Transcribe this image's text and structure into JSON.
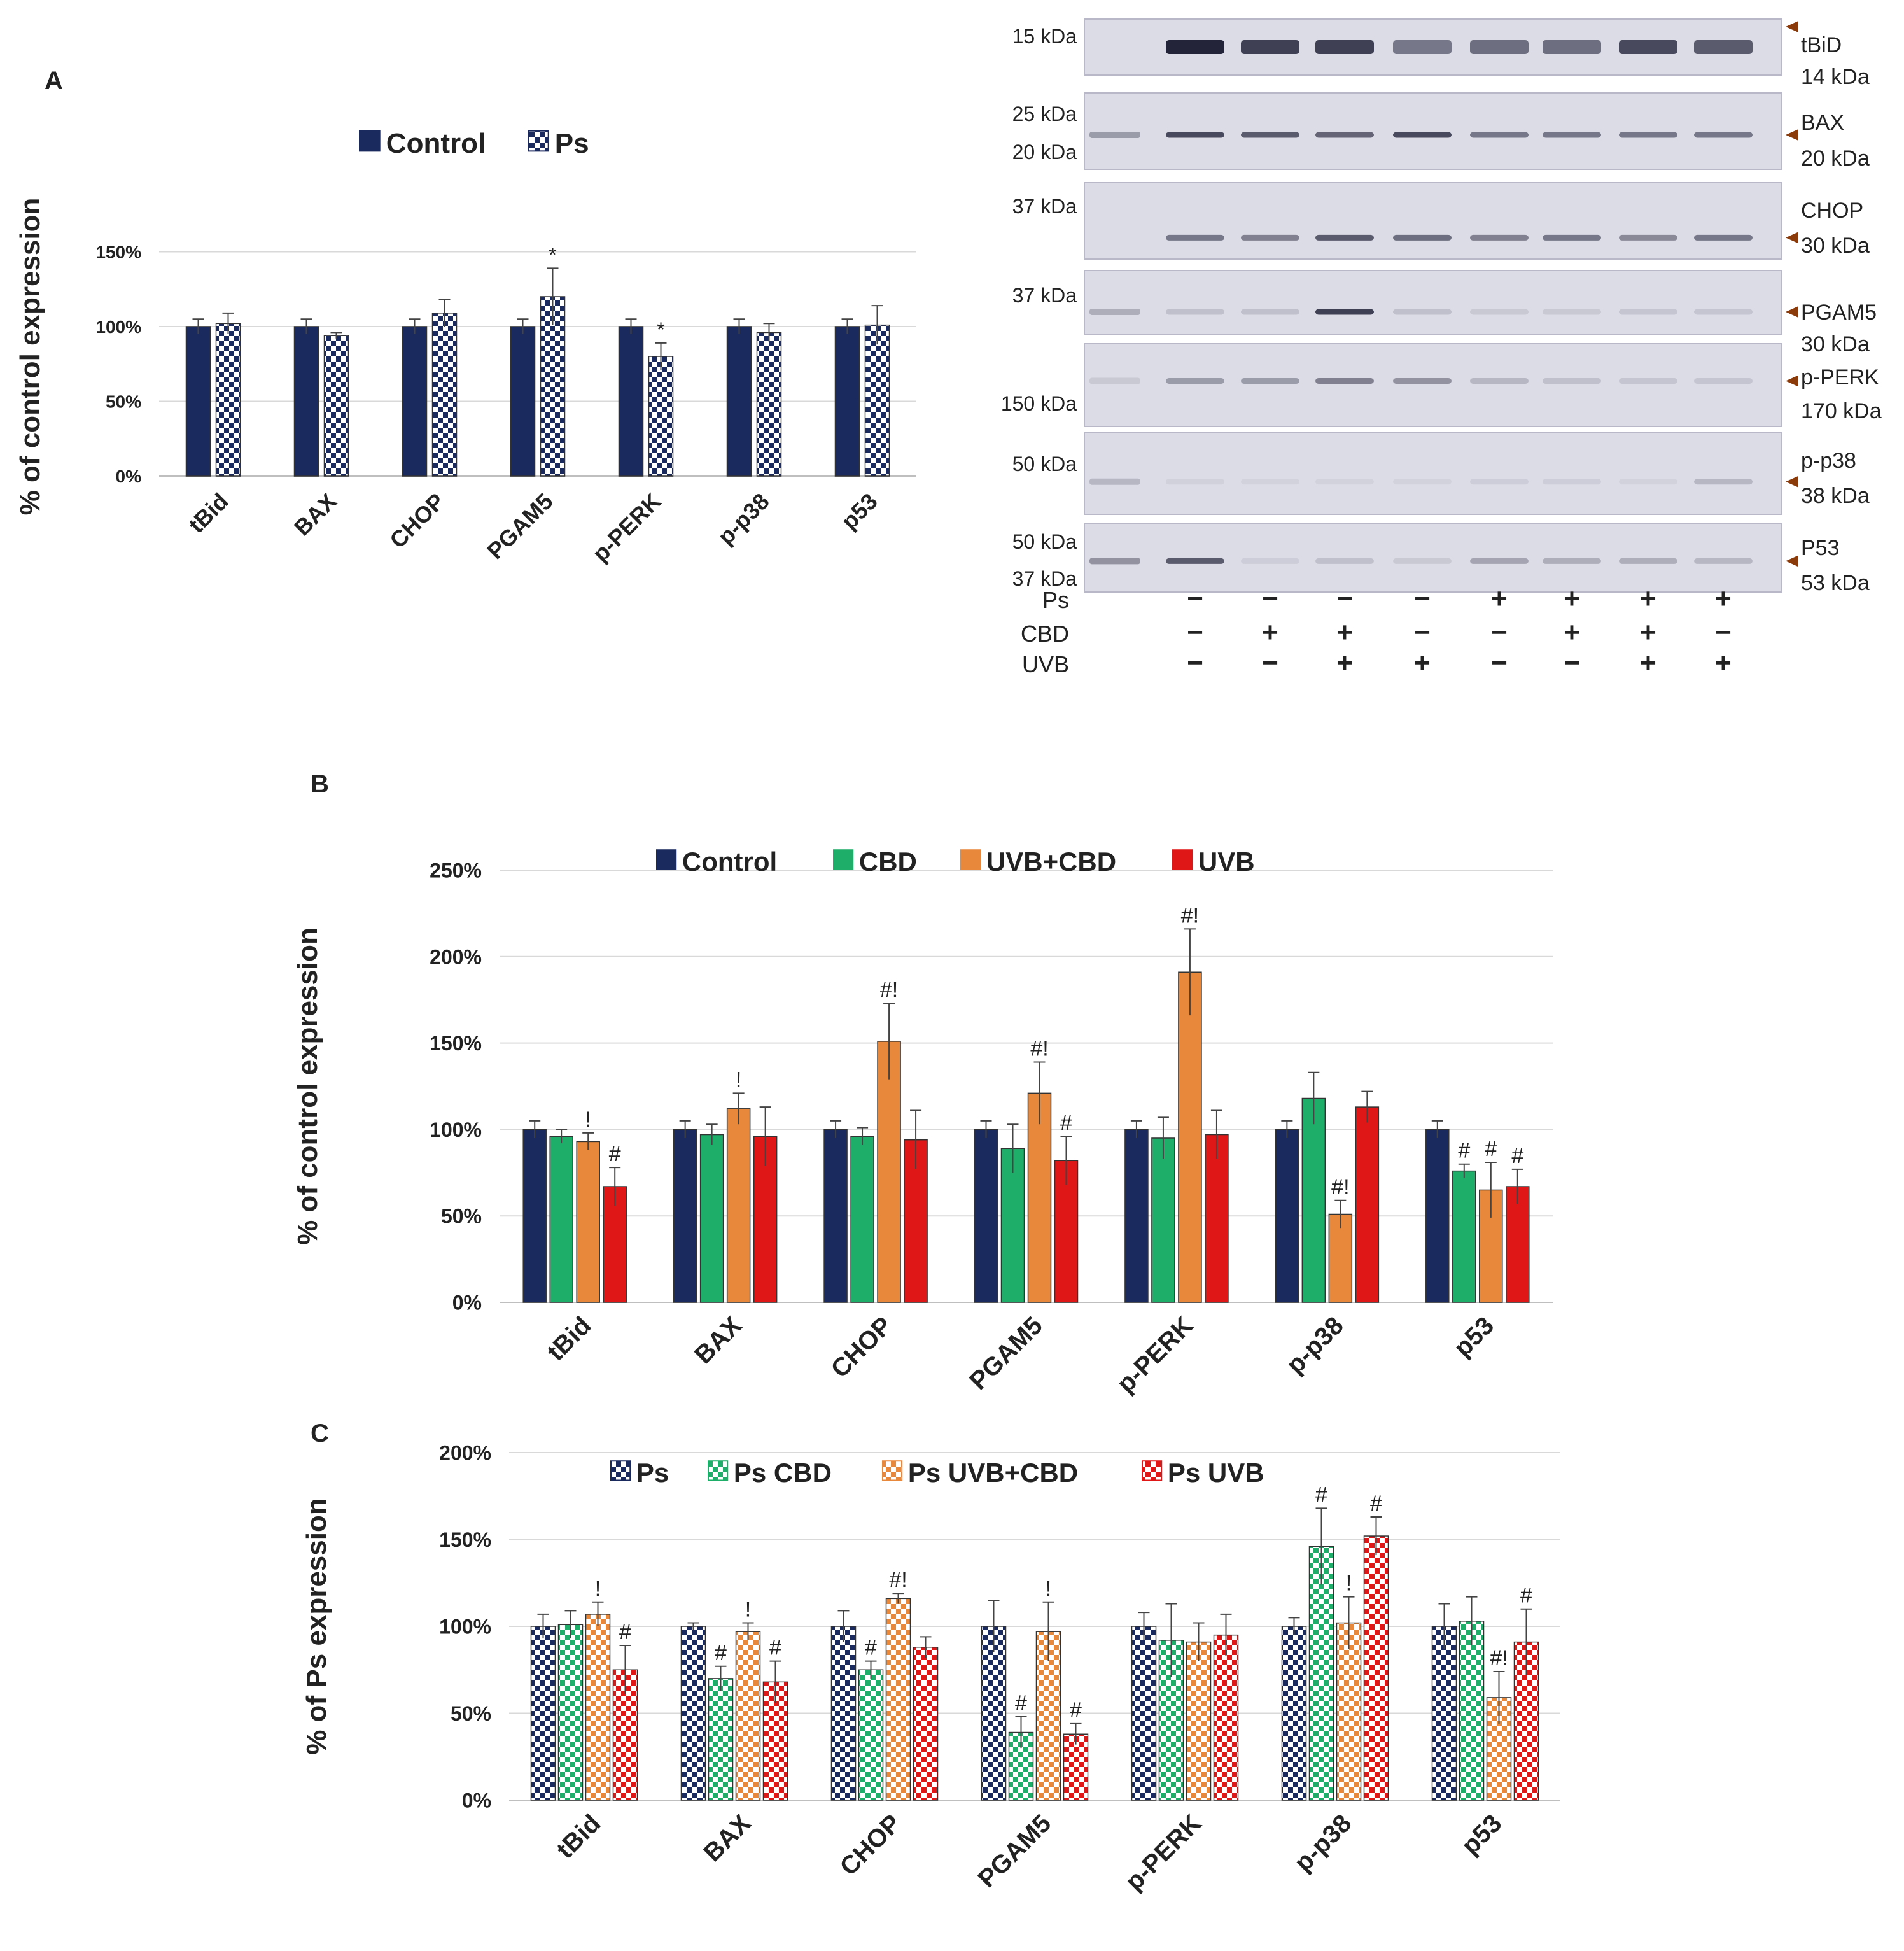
{
  "figure": {
    "panel_labels": [
      "A",
      "B",
      "C"
    ]
  },
  "colors": {
    "control": "#1b2a5e",
    "cbd": "#1fae6a",
    "uvbcbd": "#e8883a",
    "uvb": "#e01717",
    "grid": "#d9d9d9",
    "axis": "#bfbfbf",
    "text": "#222222",
    "band": "#23243a",
    "marker": "#8b3a0a"
  },
  "chart_data": [
    {
      "id": "A",
      "type": "bar",
      "categories": [
        "tBid",
        "BAX",
        "CHOP",
        "PGAM5",
        "p-PERK",
        "p-p38",
        "p53"
      ],
      "ylabel": "% of control expression",
      "yticks": [
        "0%",
        "50%",
        "100%",
        "150%"
      ],
      "ylim": [
        0,
        160
      ],
      "legend_position": "top",
      "series": [
        {
          "name": "Control",
          "fill": "solid",
          "color_key": "control",
          "values": [
            100,
            100,
            100,
            100,
            100,
            100,
            100
          ],
          "errors": [
            5,
            5,
            5,
            5,
            5,
            5,
            5
          ],
          "marks": [
            "",
            "",
            "",
            "",
            "",
            "",
            ""
          ]
        },
        {
          "name": "Ps",
          "fill": "checker",
          "color_key": "control",
          "values": [
            102,
            94,
            109,
            120,
            80,
            96,
            101
          ],
          "errors": [
            7,
            2,
            9,
            19,
            9,
            6,
            13
          ],
          "marks": [
            "",
            "",
            "",
            "*",
            "*",
            "",
            ""
          ]
        }
      ]
    },
    {
      "id": "B",
      "type": "bar",
      "categories": [
        "tBid",
        "BAX",
        "CHOP",
        "PGAM5",
        "p-PERK",
        "p-p38",
        "p53"
      ],
      "ylabel": "% of control expression",
      "yticks": [
        "0%",
        "50%",
        "100%",
        "150%",
        "200%",
        "250%"
      ],
      "ylim": [
        0,
        250
      ],
      "legend_position": "top",
      "series": [
        {
          "name": "Control",
          "fill": "solid",
          "color_key": "control",
          "values": [
            100,
            100,
            100,
            100,
            100,
            100,
            100
          ],
          "errors": [
            5,
            5,
            5,
            5,
            5,
            5,
            5
          ],
          "marks": [
            "",
            "",
            "",
            "",
            "",
            "",
            ""
          ]
        },
        {
          "name": "CBD",
          "fill": "solid",
          "color_key": "cbd",
          "values": [
            96,
            97,
            96,
            89,
            95,
            118,
            76
          ],
          "errors": [
            4,
            6,
            5,
            14,
            12,
            15,
            4
          ],
          "marks": [
            "",
            "",
            "",
            "",
            "",
            "",
            "#"
          ]
        },
        {
          "name": "UVB+CBD",
          "fill": "solid",
          "color_key": "uvbcbd",
          "values": [
            93,
            112,
            151,
            121,
            191,
            51,
            65
          ],
          "errors": [
            5,
            9,
            22,
            18,
            25,
            8,
            16
          ],
          "marks": [
            "!",
            "!",
            "#!",
            "#!",
            "#!",
            "#!",
            "#"
          ]
        },
        {
          "name": "UVB",
          "fill": "solid",
          "color_key": "uvb",
          "values": [
            67,
            96,
            94,
            82,
            97,
            113,
            67
          ],
          "errors": [
            11,
            17,
            17,
            14,
            14,
            9,
            10
          ],
          "marks": [
            "#",
            "",
            "",
            "#",
            "",
            "",
            "#"
          ]
        }
      ]
    },
    {
      "id": "C",
      "type": "bar",
      "categories": [
        "tBid",
        "BAX",
        "CHOP",
        "PGAM5",
        "p-PERK",
        "p-p38",
        "p53"
      ],
      "ylabel": "% of Ps expression",
      "yticks": [
        "0%",
        "50%",
        "100%",
        "150%",
        "200%"
      ],
      "ylim": [
        0,
        200
      ],
      "legend_position": "top",
      "series": [
        {
          "name": "Ps",
          "fill": "checker",
          "color_key": "control",
          "values": [
            100,
            100,
            100,
            100,
            100,
            100,
            100
          ],
          "errors": [
            7,
            2,
            9,
            15,
            8,
            5,
            13
          ],
          "marks": [
            "",
            "",
            "",
            "",
            "",
            "",
            ""
          ]
        },
        {
          "name": "Ps CBD",
          "fill": "checker",
          "color_key": "cbd",
          "values": [
            101,
            70,
            75,
            39,
            92,
            146,
            103
          ],
          "errors": [
            8,
            7,
            5,
            9,
            21,
            22,
            14
          ],
          "marks": [
            "",
            "#",
            "#",
            "#",
            "",
            "#",
            ""
          ]
        },
        {
          "name": "Ps UVB+CBD",
          "fill": "checker",
          "color_key": "uvbcbd",
          "values": [
            107,
            97,
            116,
            97,
            91,
            102,
            59
          ],
          "errors": [
            7,
            5,
            3,
            17,
            11,
            15,
            15
          ],
          "marks": [
            "!",
            "!",
            "#!",
            "!",
            "",
            "!",
            "#!"
          ]
        },
        {
          "name": "Ps UVB",
          "fill": "checker",
          "color_key": "uvb",
          "values": [
            75,
            68,
            88,
            38,
            95,
            152,
            91
          ],
          "errors": [
            14,
            12,
            6,
            6,
            12,
            11,
            19
          ],
          "marks": [
            "#",
            "#",
            "",
            "#",
            "",
            "#",
            "#"
          ]
        }
      ]
    }
  ],
  "blot": {
    "rows": [
      {
        "left": [
          "15 kDa"
        ],
        "right": [
          "tBiD",
          "14 kDa"
        ]
      },
      {
        "left": [
          "25 kDa",
          "20 kDa"
        ],
        "right": [
          "BAX",
          "20 kDa"
        ]
      },
      {
        "left": [
          "37 kDa"
        ],
        "right": [
          "CHOP",
          "30 kDa"
        ]
      },
      {
        "left": [
          "37 kDa"
        ],
        "right": [
          "PGAM5",
          "30 kDa"
        ]
      },
      {
        "left": [
          "150 kDa"
        ],
        "right": [
          "p-PERK",
          "170 kDa"
        ]
      },
      {
        "left": [
          "50 kDa"
        ],
        "right": [
          "p-p38",
          "38 kDa"
        ]
      },
      {
        "left": [
          "50 kDa",
          "37 kDa"
        ],
        "right": [
          "P53",
          "53 kDa"
        ]
      }
    ],
    "conditions": [
      {
        "name": "Ps",
        "signs": [
          "−",
          "−",
          "−",
          "−",
          "+",
          "+",
          "+",
          "+"
        ]
      },
      {
        "name": "CBD",
        "signs": [
          "−",
          "+",
          "+",
          "−",
          "−",
          "+",
          "+",
          "−"
        ]
      },
      {
        "name": "UVB",
        "signs": [
          "−",
          "−",
          "+",
          "+",
          "−",
          "−",
          "+",
          "+"
        ]
      }
    ]
  }
}
